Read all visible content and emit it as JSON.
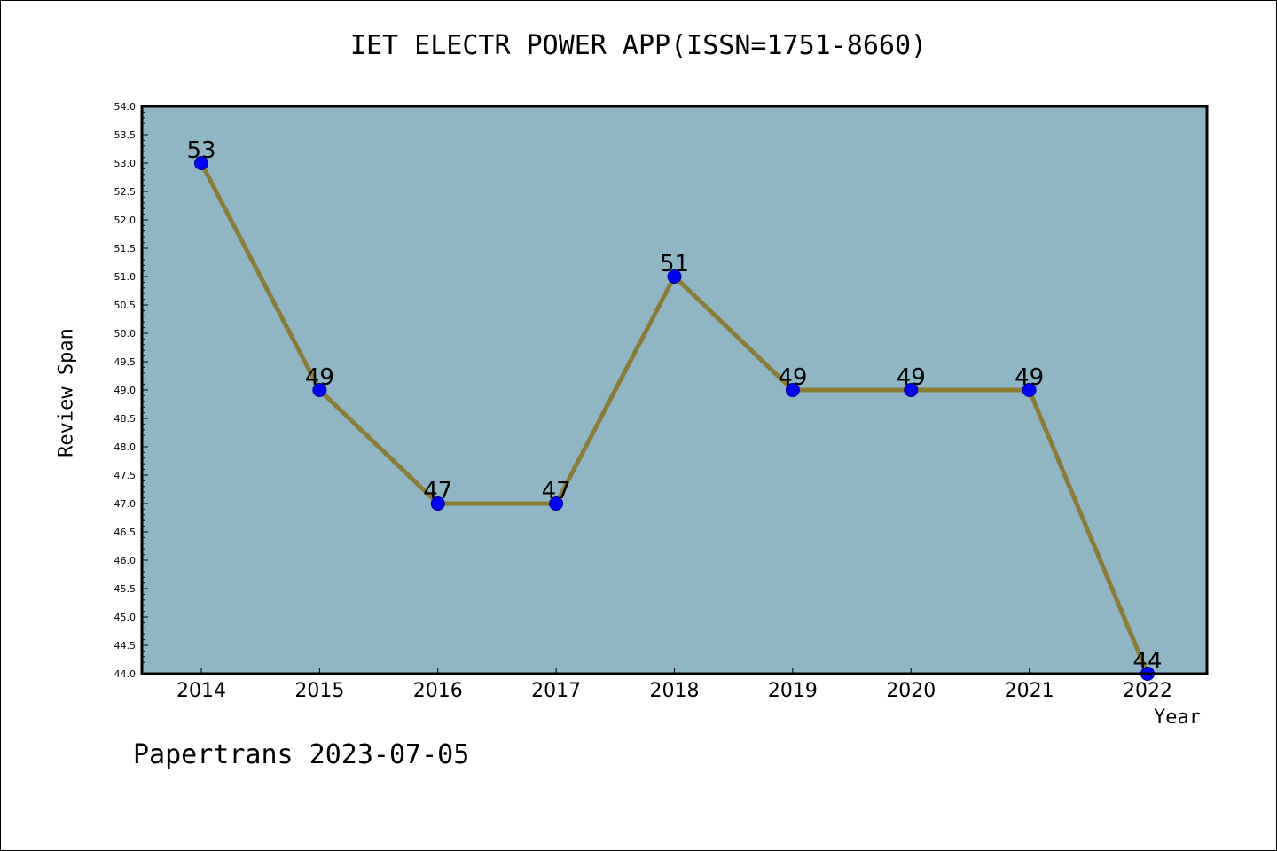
{
  "chart_data": {
    "type": "line",
    "title": "IET ELECTR POWER APP(ISSN=1751-8660)",
    "xlabel": "Year",
    "ylabel": "Review Span",
    "categories": [
      "2014",
      "2015",
      "2016",
      "2017",
      "2018",
      "2019",
      "2020",
      "2021",
      "2022"
    ],
    "series": [
      {
        "values": [
          53,
          49,
          47,
          47,
          51,
          49,
          49,
          49,
          44
        ]
      }
    ],
    "ylim": [
      44.0,
      54.0
    ],
    "ytick_step": 0.5,
    "grid": false,
    "data_labels": true,
    "plot_background": "#8fb6c4",
    "line_color": "#8b7d35",
    "marker_color": "#0000ff"
  },
  "footer": {
    "watermark": "Papertrans 2023-07-05"
  }
}
